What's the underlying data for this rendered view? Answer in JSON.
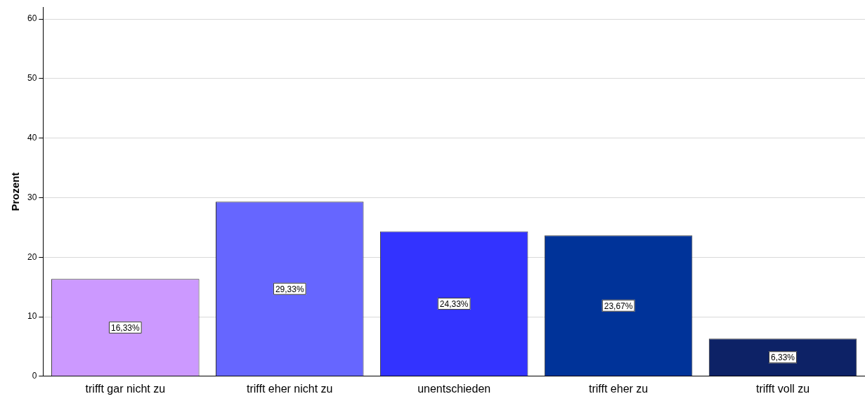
{
  "chart_data": {
    "type": "bar",
    "ylabel": "Prozent",
    "categories": [
      "trifft gar nicht zu",
      "trifft eher nicht zu",
      "unentschieden",
      "trifft eher zu",
      "trifft voll zu"
    ],
    "values": [
      16.33,
      29.33,
      24.33,
      23.67,
      6.33
    ],
    "value_labels": [
      "16,33%",
      "29,33%",
      "24,33%",
      "23,67%",
      "6,33%"
    ],
    "colors": [
      "#cc99ff",
      "#6666ff",
      "#3333ff",
      "#003399",
      "#0d2266"
    ],
    "ylim": [
      0,
      62
    ],
    "yticks": [
      0,
      10,
      20,
      30,
      40,
      50,
      60
    ],
    "grid": "y"
  }
}
